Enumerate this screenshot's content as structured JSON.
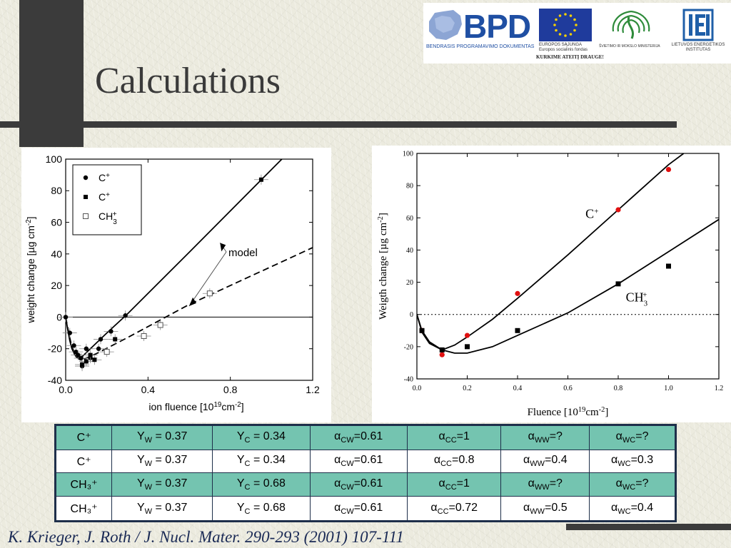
{
  "slide": {
    "title": "Calculations",
    "citation": "K. Krieger, J. Roth / J. Nucl. Mater. 290-293 (2001) 107-111"
  },
  "logos": {
    "bpd_text": "BPD",
    "bpd_caption": "BENDRASIS PROGRAMAVIMO DOKUMENTAS",
    "eu_caption_1": "EUROPOS SĄJUNGA",
    "eu_caption_2": "Europos socialinis fondas",
    "ministry_caption": "ŠVIETIMO IR MOKSLO MINISTERIJA",
    "slogan": "KURKIME ATEITĮ DRAUGE!",
    "lei_caption_1": "LIETUVOS ENERGETIKOS",
    "lei_caption_2": "INSTITUTAS",
    "colors": {
      "bpd_blue": "#1f4fa3",
      "eu_blue": "#1f3b9c",
      "eu_star": "#f5d000",
      "ministry_green": "#2e8b3a",
      "lei_blue": "#1f5fa8"
    }
  },
  "chart_data": [
    {
      "type": "scatter",
      "title": "",
      "xlabel": "ion fluence [10",
      "xlabel_sup": "19",
      "xlabel_mid": "cm",
      "xlabel_sup2": "-2",
      "xlabel_end": "]",
      "ylabel": "weight change [µg cm",
      "ylabel_sup": "-2",
      "ylabel_end": "]",
      "xlim": [
        0,
        1.2
      ],
      "ylim": [
        -40,
        100
      ],
      "xticks": [
        0.0,
        0.4,
        0.8,
        1.2
      ],
      "xtick_labels": [
        "0.0",
        "0.4",
        "0.8",
        "1.2"
      ],
      "yticks": [
        -40,
        -20,
        0,
        20,
        40,
        60,
        80,
        100
      ],
      "ytick_labels": [
        "-40",
        "-20",
        "0",
        "20",
        "40",
        "60",
        "80",
        "100"
      ],
      "grid": false,
      "reference_line_y": 0,
      "legend": {
        "position": "top-left",
        "entries": [
          {
            "label": "C",
            "sup": "+",
            "marker": "circle"
          },
          {
            "label": "C",
            "sup": "+",
            "marker": "square"
          },
          {
            "label": "CH",
            "sub": "3",
            "sup": "+",
            "marker": "open-square"
          }
        ]
      },
      "annotation": {
        "text": "model"
      },
      "series": [
        {
          "marker": "circle",
          "points": [
            {
              "x": 0.0,
              "y": 0
            },
            {
              "x": 0.02,
              "y": -10
            },
            {
              "x": 0.04,
              "y": -18
            },
            {
              "x": 0.05,
              "y": -22
            },
            {
              "x": 0.06,
              "y": -24
            },
            {
              "x": 0.075,
              "y": -26
            },
            {
              "x": 0.08,
              "y": -31
            },
            {
              "x": 0.1,
              "y": -20
            },
            {
              "x": 0.12,
              "y": -26
            },
            {
              "x": 0.16,
              "y": -20
            },
            {
              "x": 0.17,
              "y": -14
            },
            {
              "x": 0.22,
              "y": -9
            },
            {
              "x": 0.29,
              "y": 1
            }
          ]
        },
        {
          "marker": "square",
          "points": [
            {
              "x": 0.08,
              "y": -30
            },
            {
              "x": 0.1,
              "y": -28
            },
            {
              "x": 0.12,
              "y": -24
            },
            {
              "x": 0.14,
              "y": -27
            },
            {
              "x": 0.24,
              "y": -14
            },
            {
              "x": 0.95,
              "y": 87
            }
          ]
        },
        {
          "marker": "open-square",
          "points": [
            {
              "x": 0.2,
              "y": -22
            },
            {
              "x": 0.38,
              "y": -12
            },
            {
              "x": 0.46,
              "y": -5
            },
            {
              "x": 0.7,
              "y": 15
            }
          ]
        }
      ],
      "model_lines": [
        {
          "style": "solid",
          "points": [
            {
              "x": 0.0,
              "y": 0
            },
            {
              "x": 0.01,
              "y": -8
            },
            {
              "x": 0.02,
              "y": -15
            },
            {
              "x": 0.03,
              "y": -20
            },
            {
              "x": 0.045,
              "y": -24
            },
            {
              "x": 0.06,
              "y": -26
            },
            {
              "x": 0.08,
              "y": -25
            },
            {
              "x": 0.12,
              "y": -20
            },
            {
              "x": 0.2,
              "y": -10
            },
            {
              "x": 0.3,
              "y": 2
            },
            {
              "x": 0.6,
              "y": 41
            },
            {
              "x": 1.05,
              "y": 100
            }
          ]
        },
        {
          "style": "dashed",
          "points": [
            {
              "x": 0.0,
              "y": 0
            },
            {
              "x": 0.015,
              "y": -10
            },
            {
              "x": 0.03,
              "y": -19
            },
            {
              "x": 0.05,
              "y": -25
            },
            {
              "x": 0.07,
              "y": -27
            },
            {
              "x": 0.1,
              "y": -26
            },
            {
              "x": 0.15,
              "y": -23
            },
            {
              "x": 0.3,
              "y": -13
            },
            {
              "x": 0.6,
              "y": 8
            },
            {
              "x": 1.2,
              "y": 44
            }
          ]
        }
      ]
    },
    {
      "type": "scatter",
      "title": "",
      "xlabel": "Fluence [10",
      "xlabel_sup": "19",
      "xlabel_mid": "cm",
      "xlabel_sup2": "-2",
      "xlabel_end": "]",
      "ylabel": "Weigth change [µg cm",
      "ylabel_sup": "-2",
      "ylabel_end": "]",
      "xlim": [
        0,
        1.2
      ],
      "ylim": [
        -40,
        100
      ],
      "xticks": [
        0.0,
        0.2,
        0.4,
        0.6,
        0.8,
        1.0,
        1.2
      ],
      "xtick_labels": [
        "0.0",
        "0.2",
        "0.4",
        "0.6",
        "0.8",
        "1.0",
        "1.2"
      ],
      "yticks": [
        -40,
        -20,
        0,
        20,
        40,
        60,
        80,
        100
      ],
      "ytick_labels": [
        "-40",
        "-20",
        "0",
        "20",
        "40",
        "60",
        "80",
        "100"
      ],
      "grid": false,
      "reference_line_y": 0,
      "curve_labels": [
        {
          "text": "C",
          "sup": "+"
        },
        {
          "text": "CH",
          "sub": "3",
          "sup": "+"
        }
      ],
      "colors": {
        "c_plus": "#e01010",
        "ch3_plus": "#000000"
      },
      "series": [
        {
          "marker": "red-circle",
          "points": [
            {
              "x": 0.02,
              "y": -10
            },
            {
              "x": 0.1,
              "y": -25
            },
            {
              "x": 0.2,
              "y": -13
            },
            {
              "x": 0.4,
              "y": 13
            },
            {
              "x": 0.8,
              "y": 65
            },
            {
              "x": 1.0,
              "y": 90
            }
          ]
        },
        {
          "marker": "black-square",
          "points": [
            {
              "x": 0.02,
              "y": -10
            },
            {
              "x": 0.1,
              "y": -22
            },
            {
              "x": 0.2,
              "y": -20
            },
            {
              "x": 0.4,
              "y": -10
            },
            {
              "x": 0.8,
              "y": 19
            },
            {
              "x": 1.0,
              "y": 30
            }
          ]
        }
      ],
      "model_lines": [
        {
          "style": "solid",
          "points": [
            {
              "x": 0.0,
              "y": 0
            },
            {
              "x": 0.02,
              "y": -11
            },
            {
              "x": 0.05,
              "y": -18
            },
            {
              "x": 0.1,
              "y": -22
            },
            {
              "x": 0.15,
              "y": -19
            },
            {
              "x": 0.2,
              "y": -14
            },
            {
              "x": 0.3,
              "y": -3
            },
            {
              "x": 0.4,
              "y": 10
            },
            {
              "x": 0.6,
              "y": 37
            },
            {
              "x": 0.8,
              "y": 65
            },
            {
              "x": 1.0,
              "y": 93
            },
            {
              "x": 1.06,
              "y": 100
            }
          ]
        },
        {
          "style": "solid",
          "points": [
            {
              "x": 0.0,
              "y": 0
            },
            {
              "x": 0.02,
              "y": -10
            },
            {
              "x": 0.05,
              "y": -17
            },
            {
              "x": 0.1,
              "y": -22
            },
            {
              "x": 0.15,
              "y": -24
            },
            {
              "x": 0.2,
              "y": -24
            },
            {
              "x": 0.3,
              "y": -20
            },
            {
              "x": 0.4,
              "y": -13
            },
            {
              "x": 0.6,
              "y": 1
            },
            {
              "x": 0.8,
              "y": 19
            },
            {
              "x": 1.0,
              "y": 39
            },
            {
              "x": 1.2,
              "y": 59
            }
          ]
        }
      ]
    }
  ],
  "table": {
    "rows": [
      [
        "C⁺",
        "Y_W = 0.37",
        "Y_C = 0.34",
        "α_CW=0.61",
        "α_CC=1",
        "α_WW=?",
        "α_WC=?"
      ],
      [
        "C⁺",
        "Y_W = 0.37",
        "Y_C = 0.34",
        "α_CW=0.61",
        "α_CC=0.8",
        "α_WW=0.4",
        "α_WC=0.3"
      ],
      [
        "CH₃⁺",
        "Y_W = 0.37",
        "Y_C = 0.68",
        "α_CW=0.61",
        "α_CC=1",
        "α_WW=?",
        "α_WC=?"
      ],
      [
        "CH₃⁺",
        "Y_W = 0.37",
        "Y_C = 0.68",
        "α_CW=0.61",
        "α_CC=0.72",
        "α_WW=0.5",
        "α_WC=0.4"
      ]
    ],
    "colors": {
      "teal_row": "#74c4b0",
      "white_row": "#ffffff",
      "border": "#1e2f4a"
    }
  }
}
